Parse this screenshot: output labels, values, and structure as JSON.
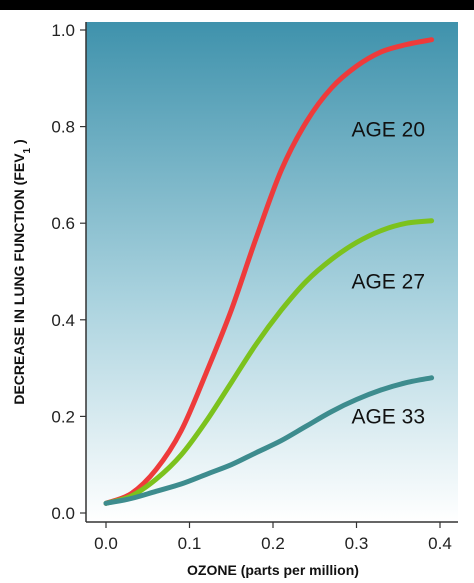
{
  "chart_data": {
    "type": "line",
    "xlabel": "OZONE (parts per million)",
    "ylabel": "DECREASE IN LUNG FUNCTION (FEV",
    "ylabel_subscript": "1",
    "ylabel_suffix": " )",
    "xlim": [
      0.0,
      0.4
    ],
    "ylim": [
      0.0,
      1.0
    ],
    "x_ticks": [
      "0.0",
      "0.1",
      "0.2",
      "0.3",
      "0.4"
    ],
    "y_ticks": [
      "0.0",
      "0.2",
      "0.4",
      "0.6",
      "0.8",
      "1.0"
    ],
    "grid": false,
    "series": [
      {
        "name": "AGE 20",
        "color": "#ee3b3b",
        "x": [
          0.0,
          0.03,
          0.06,
          0.09,
          0.12,
          0.15,
          0.18,
          0.21,
          0.24,
          0.27,
          0.3,
          0.33,
          0.36,
          0.39
        ],
        "y": [
          0.02,
          0.04,
          0.09,
          0.17,
          0.29,
          0.42,
          0.57,
          0.71,
          0.81,
          0.88,
          0.925,
          0.955,
          0.97,
          0.98
        ]
      },
      {
        "name": "AGE 27",
        "color": "#7cc21d",
        "x": [
          0.0,
          0.03,
          0.06,
          0.09,
          0.12,
          0.15,
          0.18,
          0.21,
          0.24,
          0.27,
          0.3,
          0.33,
          0.36,
          0.39
        ],
        "y": [
          0.02,
          0.035,
          0.07,
          0.12,
          0.19,
          0.27,
          0.35,
          0.42,
          0.48,
          0.525,
          0.56,
          0.585,
          0.6,
          0.605
        ]
      },
      {
        "name": "AGE 33",
        "color": "#3d8c8e",
        "x": [
          0.0,
          0.03,
          0.06,
          0.09,
          0.12,
          0.15,
          0.18,
          0.21,
          0.24,
          0.27,
          0.3,
          0.33,
          0.36,
          0.39
        ],
        "y": [
          0.02,
          0.03,
          0.045,
          0.06,
          0.08,
          0.1,
          0.125,
          0.15,
          0.18,
          0.21,
          0.235,
          0.255,
          0.27,
          0.28
        ]
      }
    ]
  },
  "colors": {
    "plot_bg_top": "#3f92ac",
    "plot_bg_bottom": "#ffffff"
  }
}
